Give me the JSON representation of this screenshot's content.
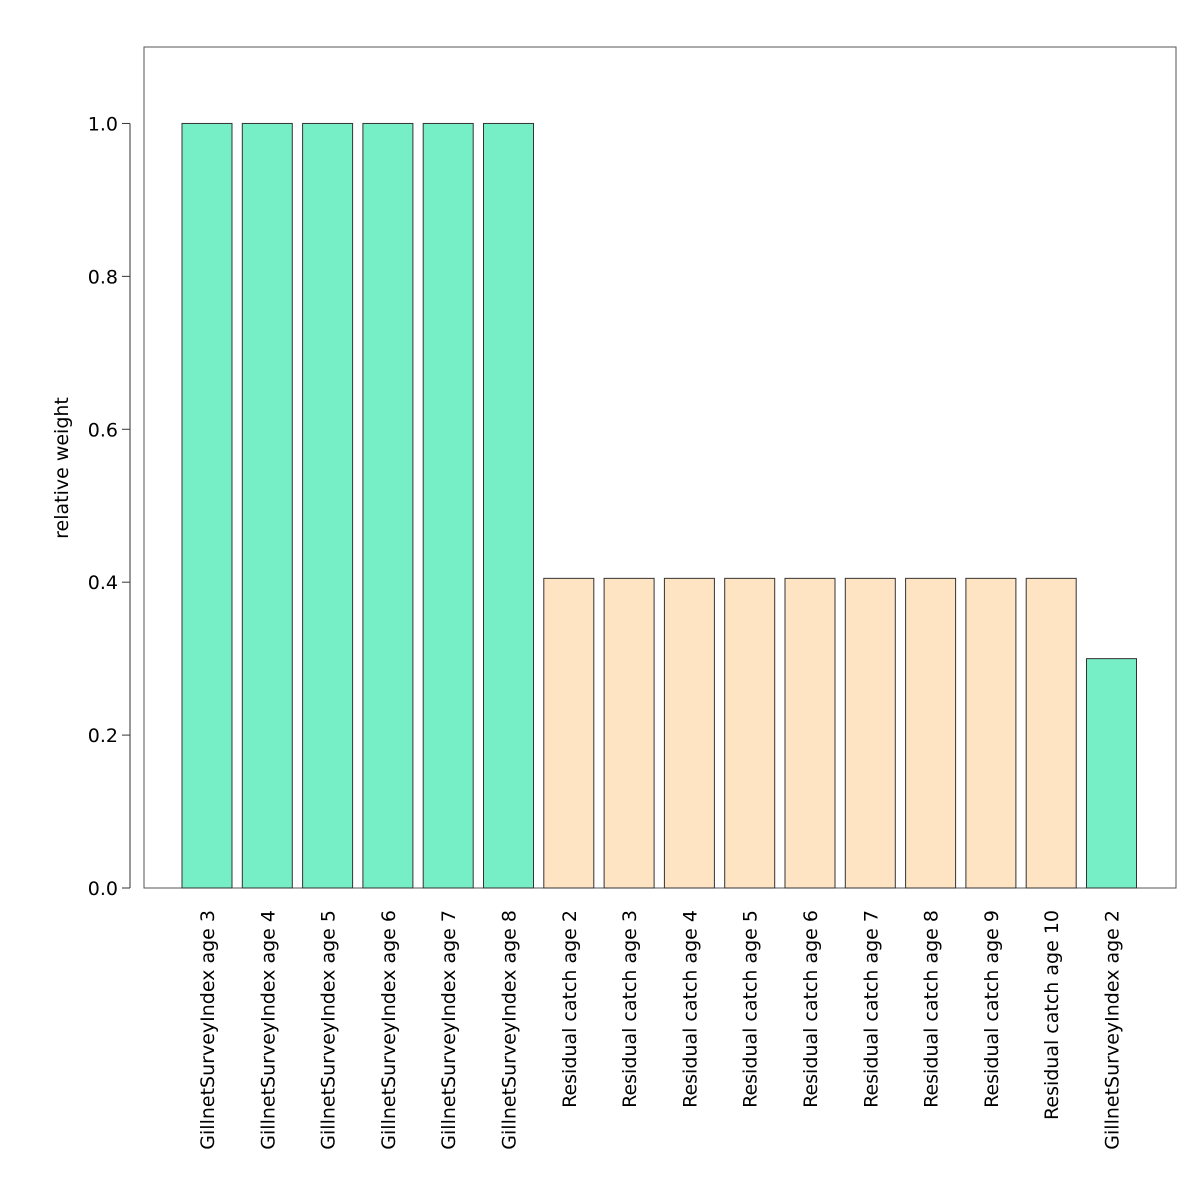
{
  "chart_data": {
    "type": "bar",
    "title": "",
    "xlabel": "",
    "ylabel": "relative weight",
    "ylim": [
      0,
      1.1
    ],
    "yticks": [
      0.0,
      0.2,
      0.4,
      0.6,
      0.8,
      1.0
    ],
    "ytick_labels": [
      "0.0",
      "0.2",
      "0.4",
      "0.6",
      "0.8",
      "1.0"
    ],
    "grid": false,
    "legend": "none",
    "colors": {
      "survey": "#76eec6",
      "catch": "#ffe4c4",
      "edge": "#333333"
    },
    "categories": [
      "GillnetSurveyIndex age 3",
      "GillnetSurveyIndex age 4",
      "GillnetSurveyIndex age 5",
      "GillnetSurveyIndex age 6",
      "GillnetSurveyIndex age 7",
      "GillnetSurveyIndex age 8",
      "Residual catch age 2",
      "Residual catch age 3",
      "Residual catch age 4",
      "Residual catch age 5",
      "Residual catch age 6",
      "Residual catch age 7",
      "Residual catch age 8",
      "Residual catch age 9",
      "Residual catch age 10",
      "GillnetSurveyIndex age 2"
    ],
    "values": [
      1.0,
      1.0,
      1.0,
      1.0,
      1.0,
      1.0,
      0.405,
      0.405,
      0.405,
      0.405,
      0.405,
      0.405,
      0.405,
      0.405,
      0.405,
      0.3
    ],
    "bar_groups": [
      "survey",
      "survey",
      "survey",
      "survey",
      "survey",
      "survey",
      "catch",
      "catch",
      "catch",
      "catch",
      "catch",
      "catch",
      "catch",
      "catch",
      "catch",
      "survey"
    ]
  }
}
